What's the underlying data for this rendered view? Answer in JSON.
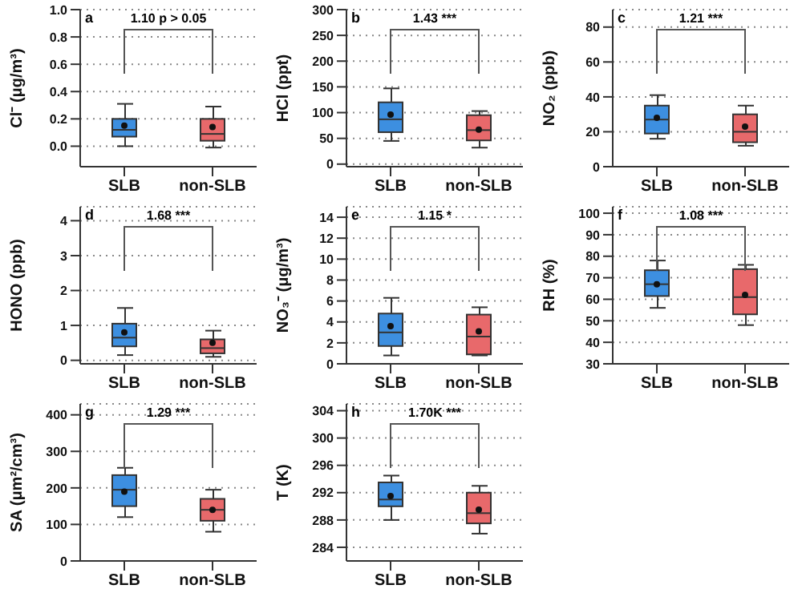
{
  "chart_data": [
    {
      "type": "box",
      "categories": [
        "SLB",
        "non-SLB"
      ],
      "colors": [
        "#3d8fe0",
        "#e8696b"
      ],
      "ylabel": "Cl⁻ (μg/m³)",
      "ylim": [
        -0.15,
        1.0
      ],
      "yticks": [
        {
          "value": 0,
          "label": "0.0"
        },
        0.2,
        0.4,
        0.6,
        0.8,
        {
          "value": 1,
          "label": "1.0"
        }
      ],
      "grid": "y",
      "annotations": [
        "a",
        "1.10 p > 0.05"
      ],
      "boxes": [
        {
          "low": 0,
          "q1": 0.07,
          "median": 0.12,
          "q3": 0.2,
          "high": 0.31,
          "mean": 0.15
        },
        {
          "low": -0.01,
          "q1": 0.04,
          "median": 0.09,
          "q3": 0.2,
          "high": 0.29,
          "mean": 0.14
        }
      ]
    },
    {
      "type": "box",
      "categories": [
        "SLB",
        "non-SLB"
      ],
      "colors": [
        "#3d8fe0",
        "#e8696b"
      ],
      "ylabel": "HCl (ppt)",
      "ylim": [
        -5,
        300
      ],
      "yticks": [
        0,
        50,
        100,
        150,
        200,
        250,
        300
      ],
      "grid": "y",
      "annotations": [
        "b",
        "1.43 ***"
      ],
      "boxes": [
        {
          "low": 45,
          "q1": 62,
          "median": 87,
          "q3": 120,
          "high": 147,
          "mean": 96
        },
        {
          "low": 32,
          "q1": 46,
          "median": 66,
          "q3": 95,
          "high": 103,
          "mean": 67
        }
      ]
    },
    {
      "type": "box",
      "categories": [
        "SLB",
        "non-SLB"
      ],
      "colors": [
        "#3d8fe0",
        "#e8696b"
      ],
      "ylabel": "NO₂ (ppb)",
      "ylim": [
        0,
        90
      ],
      "yticks": [
        0,
        20,
        40,
        60,
        80
      ],
      "grid": "y",
      "annotations": [
        "c",
        "1.21 ***"
      ],
      "boxes": [
        {
          "low": 16,
          "q1": 19,
          "median": 27,
          "q3": 35,
          "high": 41,
          "mean": 28
        },
        {
          "low": 12,
          "q1": 14,
          "median": 20,
          "q3": 30,
          "high": 35,
          "mean": 23
        }
      ]
    },
    {
      "type": "box",
      "categories": [
        "SLB",
        "non-SLB"
      ],
      "colors": [
        "#3d8fe0",
        "#e8696b"
      ],
      "ylabel": "HONO (ppb)",
      "ylim": [
        -0.1,
        4.4
      ],
      "yticks": [
        0,
        1,
        2,
        3,
        4
      ],
      "grid": "y",
      "annotations": [
        "d",
        "1.68 ***"
      ],
      "boxes": [
        {
          "low": 0.15,
          "q1": 0.4,
          "median": 0.65,
          "q3": 1.05,
          "high": 1.5,
          "mean": 0.8
        },
        {
          "low": 0.1,
          "q1": 0.2,
          "median": 0.35,
          "q3": 0.6,
          "high": 0.85,
          "mean": 0.5
        }
      ]
    },
    {
      "type": "box",
      "categories": [
        "SLB",
        "non-SLB"
      ],
      "colors": [
        "#3d8fe0",
        "#e8696b"
      ],
      "ylabel": "NO₃⁻ (μg/m³)",
      "ylim": [
        0,
        15
      ],
      "yticks": [
        0,
        2,
        4,
        6,
        8,
        10,
        12,
        14
      ],
      "grid": "y",
      "annotations": [
        "e",
        "1.15 *"
      ],
      "boxes": [
        {
          "low": 0.8,
          "q1": 1.7,
          "median": 3.0,
          "q3": 4.8,
          "high": 6.3,
          "mean": 3.6
        },
        {
          "low": 0.8,
          "q1": 0.9,
          "median": 2.6,
          "q3": 4.7,
          "high": 5.4,
          "mean": 3.1
        }
      ]
    },
    {
      "type": "box",
      "categories": [
        "SLB",
        "non-SLB"
      ],
      "colors": [
        "#3d8fe0",
        "#e8696b"
      ],
      "ylabel": "RH (%)",
      "ylim": [
        30,
        103
      ],
      "yticks": [
        30,
        40,
        50,
        60,
        70,
        80,
        90,
        100
      ],
      "grid": "y",
      "annotations": [
        "f",
        "1.08 ***"
      ],
      "boxes": [
        {
          "low": 56,
          "q1": 61.5,
          "median": 67,
          "q3": 73.5,
          "high": 78,
          "mean": 67
        },
        {
          "low": 48,
          "q1": 53,
          "median": 61,
          "q3": 74,
          "high": 76,
          "mean": 62
        }
      ]
    },
    {
      "type": "box",
      "categories": [
        "SLB",
        "non-SLB"
      ],
      "colors": [
        "#3d8fe0",
        "#e8696b"
      ],
      "ylabel": "SA (μm²/cm³)",
      "ylim": [
        0,
        430
      ],
      "yticks": [
        0,
        100,
        200,
        300,
        400
      ],
      "grid": "y",
      "annotations": [
        "g",
        "1.29 ***"
      ],
      "boxes": [
        {
          "low": 120,
          "q1": 150,
          "median": 195,
          "q3": 235,
          "high": 255,
          "mean": 190
        },
        {
          "low": 80,
          "q1": 110,
          "median": 140,
          "q3": 170,
          "high": 195,
          "mean": 140
        }
      ]
    },
    {
      "type": "box",
      "categories": [
        "SLB",
        "non-SLB"
      ],
      "colors": [
        "#3d8fe0",
        "#e8696b"
      ],
      "ylabel": "T (K)",
      "ylim": [
        282,
        305
      ],
      "yticks": [
        284,
        288,
        292,
        296,
        300,
        304
      ],
      "grid": "y",
      "annotations": [
        "h",
        "1.70K ***"
      ],
      "boxes": [
        {
          "low": 288,
          "q1": 290,
          "median": 291,
          "q3": 293.5,
          "high": 294.5,
          "mean": 291.5
        },
        {
          "low": 286,
          "q1": 287.5,
          "median": 289,
          "q3": 292,
          "high": 293,
          "mean": 289.5
        }
      ]
    }
  ]
}
